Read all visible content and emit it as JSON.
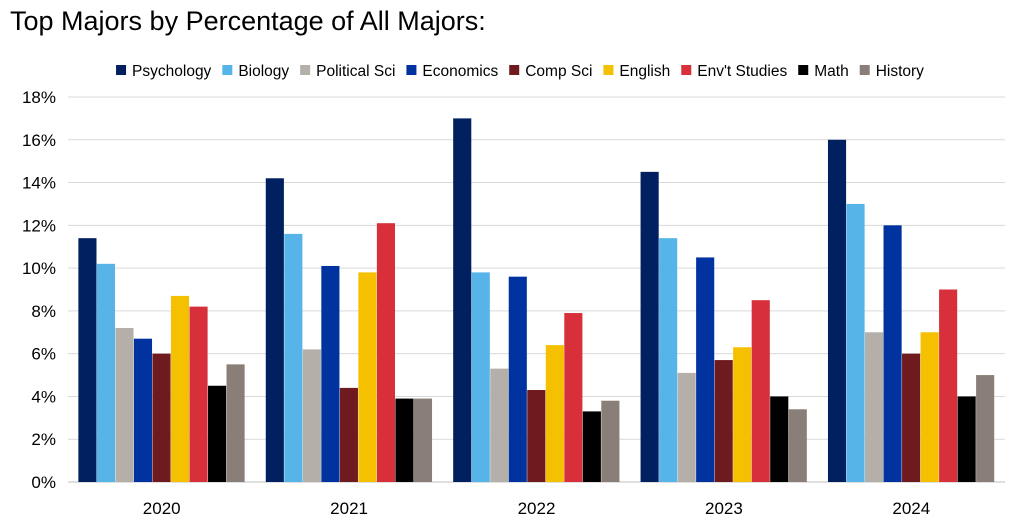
{
  "chart_data": {
    "type": "bar",
    "title": "Top Majors by Percentage of All Majors:",
    "xlabel": "",
    "ylabel": "",
    "ylim": [
      0,
      18
    ],
    "ytick_step": 2,
    "y_tick_suffix": "%",
    "grid": true,
    "legend_position": "top",
    "categories": [
      "2020",
      "2021",
      "2022",
      "2023",
      "2024"
    ],
    "series": [
      {
        "name": "Psychology",
        "color": "#002060",
        "values": [
          11.4,
          14.2,
          17.0,
          14.5,
          16.0
        ]
      },
      {
        "name": "Biology",
        "color": "#56b4e9",
        "values": [
          10.2,
          11.6,
          9.8,
          11.4,
          13.0
        ]
      },
      {
        "name": "Political Sci",
        "color": "#b4afa9",
        "values": [
          7.2,
          6.2,
          5.3,
          5.1,
          7.0
        ]
      },
      {
        "name": "Economics",
        "color": "#0033a0",
        "values": [
          6.7,
          10.1,
          9.6,
          10.5,
          12.0
        ]
      },
      {
        "name": "Comp Sci",
        "color": "#6e1a1e",
        "values": [
          6.0,
          4.4,
          4.3,
          5.7,
          6.0
        ]
      },
      {
        "name": "English",
        "color": "#f5c000",
        "values": [
          8.7,
          9.8,
          6.4,
          6.3,
          7.0
        ]
      },
      {
        "name": "Env't Studies",
        "color": "#d7303a",
        "values": [
          8.2,
          12.1,
          7.9,
          8.5,
          9.0
        ]
      },
      {
        "name": "Math",
        "color": "#000000",
        "values": [
          4.5,
          3.9,
          3.3,
          4.0,
          4.0
        ]
      },
      {
        "name": "History",
        "color": "#8a7f78",
        "values": [
          5.5,
          3.9,
          3.8,
          3.4,
          5.0
        ]
      }
    ]
  }
}
